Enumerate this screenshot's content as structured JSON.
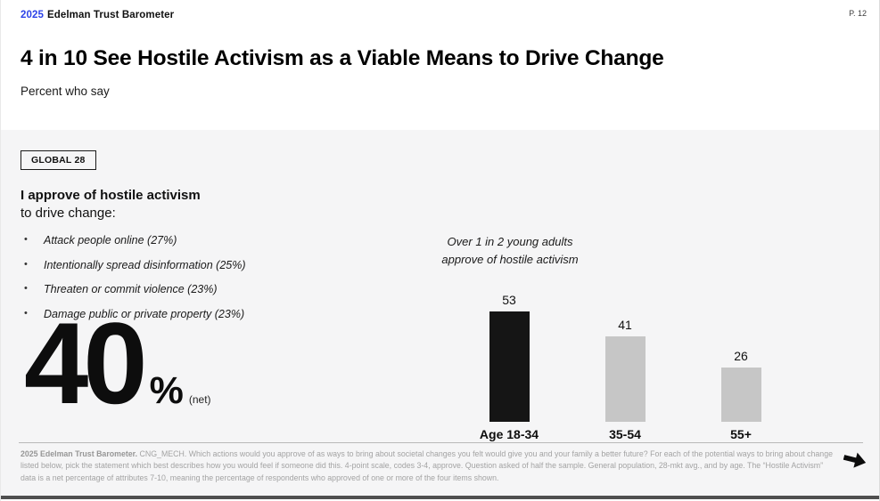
{
  "header": {
    "brand_year": "2025",
    "brand_name": "Edelman Trust Barometer",
    "page_number": "P. 12"
  },
  "title": "4 in 10 See Hostile Activism as a Viable Means to Drive Change",
  "subtitle": "Percent who say",
  "panel": {
    "badge": "GLOBAL 28",
    "statement_bold": "I approve of hostile activism",
    "statement_rest": "to drive change:",
    "bullets": [
      "Attack people online (27%)",
      "Intentionally spread disinformation (25%)",
      "Threaten or commit violence (23%)",
      "Damage public or private property (23%)"
    ],
    "net_value": "40",
    "net_percent_sign": "%",
    "net_label": "(net)"
  },
  "chart_data": {
    "type": "bar",
    "title": "",
    "annotation_lines": [
      "Over 1 in 2 young adults",
      "approve of hostile activism"
    ],
    "categories": [
      "Age 18-34",
      "35-54",
      "55+"
    ],
    "values": [
      53,
      41,
      26
    ],
    "bar_colors": [
      "#151515",
      "#c6c6c6",
      "#c6c6c6"
    ],
    "ylim": [
      0,
      60
    ],
    "grid": false,
    "legend": false
  },
  "footer": {
    "source_bold": "2025 Edelman Trust Barometer.",
    "text": "CNG_MECH. Which actions would you approve of as ways to bring about societal changes you felt would give you and your family a better future? For each of the potential ways to bring about change listed below, pick the statement which best describes how you would feel if someone did this. 4-point scale, codes 3-4, approve. Question asked of half the sample. General population, 28-mkt avg., and by age. The “Hostile Activism” data is a net percentage of attributes 7-10, meaning the percentage of respondents who approved of one or more of the four items shown.",
    "next_icon": "right-arrow-icon"
  },
  "colors": {
    "accent_blue": "#2d43e8",
    "panel_bg": "#f5f5f6",
    "bar_black": "#151515",
    "bar_gray": "#c6c6c6",
    "footnote_gray": "#a3a3a3"
  }
}
